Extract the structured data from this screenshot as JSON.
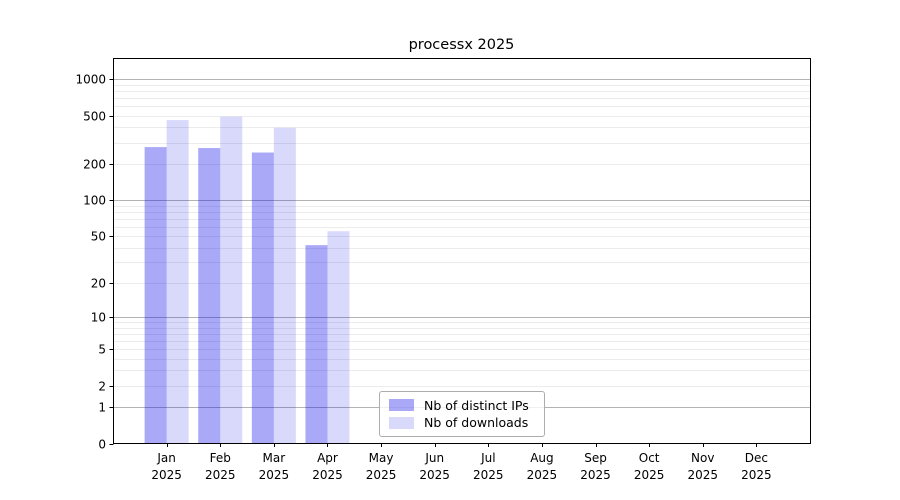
{
  "figure": {
    "background": "#ffffff"
  },
  "chart_data": {
    "type": "bar",
    "title": "processx 2025",
    "x_axis": {
      "categories": [
        "Jan",
        "Feb",
        "Mar",
        "Apr",
        "May",
        "Jun",
        "Jul",
        "Aug",
        "Sep",
        "Oct",
        "Nov",
        "Dec"
      ],
      "year_line": "2025"
    },
    "y_axis": {
      "scale": "log1p",
      "ticks": [
        0,
        1,
        2,
        5,
        10,
        20,
        50,
        100,
        200,
        500,
        1000
      ],
      "major_grid_at": [
        1,
        10,
        100,
        1000
      ],
      "ylim": [
        0,
        1480
      ]
    },
    "series": [
      {
        "name": "Nb of distinct IPs",
        "color": "#a9a9f8",
        "fill": "rgba(2,2,235,0.34)",
        "values": [
          275,
          270,
          248,
          42,
          0,
          0,
          0,
          0,
          0,
          0,
          0,
          0
        ]
      },
      {
        "name": "Nb of downloads",
        "color": "#d9d9fb",
        "fill": "rgba(2,2,235,0.15)",
        "values": [
          460,
          490,
          397,
          55,
          0,
          0,
          0,
          0,
          0,
          0,
          0,
          0
        ]
      }
    ],
    "grid": "horizontal",
    "legend_position": "lower center",
    "colors": {
      "major_grid": "#b3b3b3",
      "minor_grid": "#ececec",
      "spine": "#000000",
      "tick_label": "#000000"
    }
  }
}
